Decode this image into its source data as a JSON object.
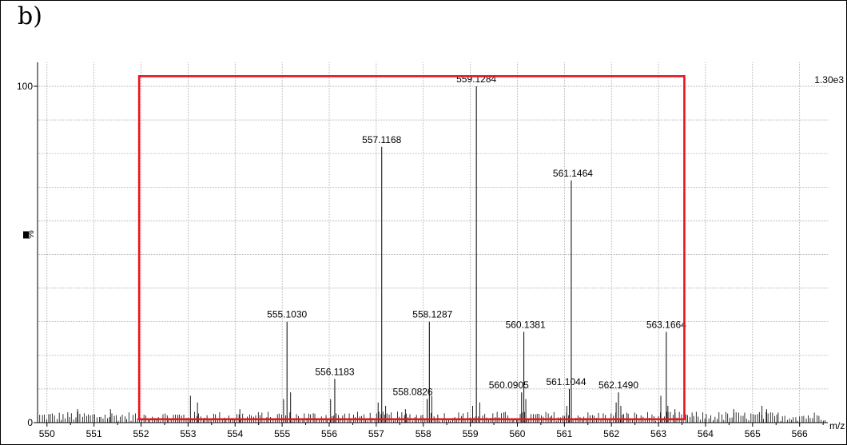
{
  "panel_label": "b)",
  "chart_data": {
    "type": "bar",
    "xlabel": "m/z",
    "ylabel": "%",
    "xlim": [
      549.8,
      566.6
    ],
    "ylim": [
      0,
      100
    ],
    "x_ticks": [
      "550",
      "551",
      "552",
      "553",
      "554",
      "555",
      "556",
      "557",
      "558",
      "559",
      "560",
      "561",
      "562",
      "563",
      "564",
      "565",
      "566"
    ],
    "y_ticks": [
      "0",
      "100"
    ],
    "intensity_label": "1.30e3",
    "grid": true,
    "peaks": [
      {
        "mz": 555.103,
        "intensity": 30,
        "label": "555.1030"
      },
      {
        "mz": 556.1183,
        "intensity": 13,
        "label": "556.1183"
      },
      {
        "mz": 557.1168,
        "intensity": 82,
        "label": "557.1168"
      },
      {
        "mz": 558.0826,
        "intensity": 7,
        "label": "558.0826"
      },
      {
        "mz": 558.1287,
        "intensity": 30,
        "label": "558.1287"
      },
      {
        "mz": 559.1284,
        "intensity": 100,
        "label": "559.1284"
      },
      {
        "mz": 560.0905,
        "intensity": 9,
        "label": "560.0905"
      },
      {
        "mz": 560.1381,
        "intensity": 27,
        "label": "560.1381"
      },
      {
        "mz": 561.1044,
        "intensity": 10,
        "label": "561.1044"
      },
      {
        "mz": 561.1464,
        "intensity": 72,
        "label": "561.1464"
      },
      {
        "mz": 562.149,
        "intensity": 9,
        "label": "562.1490"
      },
      {
        "mz": 563.1664,
        "intensity": 27,
        "label": "563.1664"
      }
    ],
    "minor_peaks": [
      {
        "mz": 553.05,
        "intensity": 8
      },
      {
        "mz": 553.2,
        "intensity": 6
      },
      {
        "mz": 554.1,
        "intensity": 4
      },
      {
        "mz": 555.03,
        "intensity": 7
      },
      {
        "mz": 555.18,
        "intensity": 9
      },
      {
        "mz": 556.03,
        "intensity": 7
      },
      {
        "mz": 557.04,
        "intensity": 6
      },
      {
        "mz": 557.2,
        "intensity": 5
      },
      {
        "mz": 557.62,
        "intensity": 4
      },
      {
        "mz": 558.18,
        "intensity": 8
      },
      {
        "mz": 559.05,
        "intensity": 5
      },
      {
        "mz": 559.2,
        "intensity": 6
      },
      {
        "mz": 560.18,
        "intensity": 7
      },
      {
        "mz": 561.05,
        "intensity": 5
      },
      {
        "mz": 562.1,
        "intensity": 6
      },
      {
        "mz": 562.2,
        "intensity": 5
      },
      {
        "mz": 563.05,
        "intensity": 8
      },
      {
        "mz": 563.2,
        "intensity": 5
      },
      {
        "mz": 563.35,
        "intensity": 4
      },
      {
        "mz": 565.2,
        "intensity": 5
      },
      {
        "mz": 565.3,
        "intensity": 4
      },
      {
        "mz": 550.65,
        "intensity": 4
      },
      {
        "mz": 551.35,
        "intensity": 4
      },
      {
        "mz": 564.6,
        "intensity": 4
      }
    ],
    "highlight_box": {
      "x_range": [
        551.96,
        563.55
      ],
      "y_range": [
        1,
        103
      ],
      "color": "#e8141c"
    }
  }
}
